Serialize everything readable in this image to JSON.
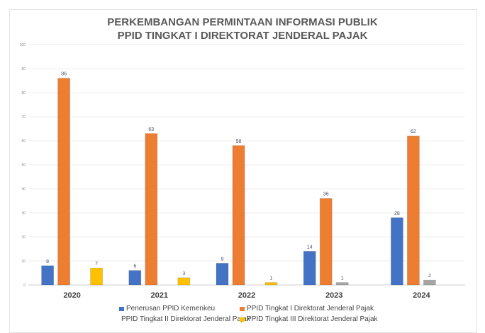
{
  "chart_data": {
    "type": "bar",
    "title": [
      "PERKEMBANGAN PERMINTAAN INFORMASI PUBLIK",
      "PPID TINGKAT I DIREKTORAT JENDERAL PAJAK"
    ],
    "categories": [
      "2020",
      "2021",
      "2022",
      "2023",
      "2024"
    ],
    "series": [
      {
        "name": "Penerusan PPID Kemenkeu",
        "color": "#4472c4",
        "values": [
          8,
          6,
          9,
          14,
          28
        ]
      },
      {
        "name": "PPID Tingkat I Direktorat Jenderal Pajak",
        "color": "#ed7d31",
        "values": [
          86,
          63,
          58,
          36,
          62
        ]
      },
      {
        "name": "PPID Tingkat II Direktorat Jenderal Pajak",
        "color": "#a5a5a5",
        "values": [
          null,
          null,
          null,
          1,
          2
        ]
      },
      {
        "name": "PPID Tingkat III Direktorat Jenderal Pajak",
        "color": "#ffc000",
        "values": [
          7,
          3,
          1,
          null,
          null
        ]
      }
    ],
    "ylim": [
      0,
      100
    ],
    "yticks": [
      "0",
      "10",
      "20",
      "30",
      "40",
      "50",
      "60",
      "70",
      "80",
      "90",
      "100"
    ],
    "grid": true,
    "legend": "bottom"
  }
}
